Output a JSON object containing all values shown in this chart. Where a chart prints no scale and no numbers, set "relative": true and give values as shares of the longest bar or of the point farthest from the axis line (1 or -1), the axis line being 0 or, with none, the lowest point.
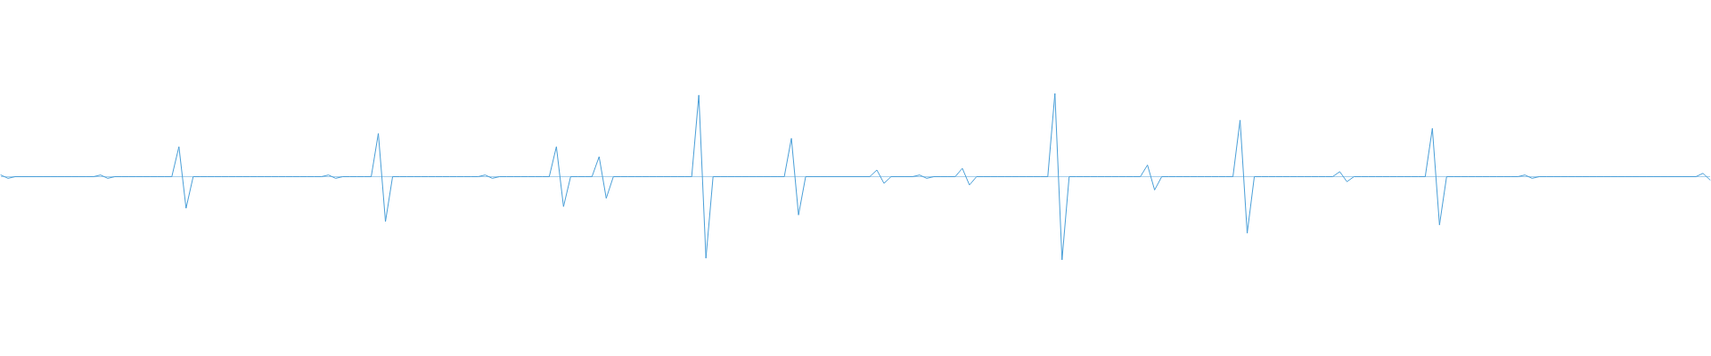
{
  "chart_data": {
    "type": "line",
    "relative": true,
    "color": "#4a9fd8",
    "ref_lines": [
      {
        "axis": "y",
        "value": 0,
        "color": "#4a9fd8"
      }
    ],
    "categories": [
      null,
      null,
      null,
      null,
      null,
      null,
      null,
      null,
      null,
      null,
      null,
      null,
      null,
      null,
      null,
      null,
      null,
      null,
      null,
      null,
      null,
      null,
      null,
      null,
      null,
      null,
      null,
      null,
      null,
      null,
      null,
      null,
      null,
      null,
      null,
      null,
      null,
      null,
      null,
      null,
      null,
      null,
      null,
      null,
      null,
      null,
      null,
      null,
      null,
      null,
      null,
      null,
      null,
      null,
      null,
      null,
      null,
      null,
      null,
      null,
      null,
      null,
      null,
      null,
      null,
      null,
      null,
      null,
      null,
      null,
      null,
      null,
      null,
      null,
      null,
      null,
      null,
      null,
      null,
      null,
      null,
      null,
      null,
      null,
      null,
      null,
      null,
      null,
      null,
      null,
      null,
      null,
      null,
      null,
      null,
      null,
      null,
      null,
      null,
      null,
      null,
      null,
      null,
      null,
      null,
      null,
      null,
      null,
      null,
      null,
      null,
      null,
      null,
      null,
      null,
      null,
      null,
      null,
      null,
      null,
      null,
      null,
      null,
      null,
      null,
      null,
      null,
      null,
      null,
      null,
      null,
      null,
      null,
      null,
      null,
      null,
      null,
      null,
      null,
      null,
      null,
      null,
      null,
      null,
      null,
      null,
      null,
      null,
      null,
      null,
      null,
      null,
      null,
      null,
      null,
      null,
      null,
      null,
      null,
      null,
      null,
      null,
      null,
      null,
      null,
      null,
      null,
      null,
      null,
      null,
      null,
      null,
      null,
      null,
      null,
      null,
      null,
      null,
      null,
      null,
      null,
      null,
      null,
      null,
      null,
      null,
      null,
      null,
      null,
      null,
      null,
      null,
      null,
      null,
      null,
      null,
      null,
      null,
      null,
      null,
      null,
      null,
      null,
      null,
      null,
      null,
      null,
      null,
      null,
      null,
      null,
      null,
      null,
      null,
      null,
      null,
      null,
      null,
      null,
      null,
      null,
      null,
      null,
      null,
      null,
      null,
      null,
      null,
      null,
      null,
      null,
      null,
      null,
      null,
      null,
      null,
      null,
      null,
      null,
      null,
      null
    ],
    "values": [
      0.02,
      -0.02,
      0,
      0,
      0,
      0,
      0,
      0,
      0,
      0,
      0,
      0,
      0,
      0,
      0.02,
      -0.02,
      0,
      0,
      0,
      0,
      0,
      0,
      0,
      0,
      0,
      0.36,
      -0.38,
      0,
      0,
      0,
      0,
      0,
      0,
      0,
      0,
      0,
      0,
      0,
      0,
      0,
      0,
      0,
      0,
      0,
      0,
      0,
      0.02,
      -0.02,
      0,
      0,
      0,
      0,
      0,
      0.52,
      -0.54,
      0,
      0,
      0,
      0,
      0,
      0,
      0,
      0,
      0,
      0,
      0,
      0,
      0,
      0.02,
      -0.02,
      0,
      0,
      0,
      0,
      0,
      0,
      0,
      0,
      0.36,
      -0.36,
      0,
      0,
      0,
      0,
      0.24,
      -0.26,
      0,
      0,
      0,
      0,
      0,
      0,
      0,
      0,
      0,
      0,
      0,
      0,
      0.98,
      -0.98,
      0,
      0,
      0,
      0,
      0,
      0,
      0,
      0,
      0,
      0,
      0,
      0.46,
      -0.46,
      0,
      0,
      0,
      0,
      0,
      0,
      0,
      0,
      0,
      0,
      0.08,
      -0.08,
      0,
      0,
      0,
      0,
      0.02,
      -0.02,
      0,
      0,
      0,
      0,
      0.1,
      -0.1,
      0,
      0,
      0,
      0,
      0,
      0,
      0,
      0,
      0,
      0,
      0,
      1,
      -1,
      0,
      0,
      0,
      0,
      0,
      0,
      0,
      0,
      0,
      0,
      0,
      0.14,
      -0.16,
      0,
      0,
      0,
      0,
      0,
      0,
      0,
      0,
      0,
      0,
      0,
      0.68,
      -0.68,
      0,
      0,
      0,
      0,
      0,
      0,
      0,
      0,
      0,
      0,
      0,
      0,
      0.06,
      -0.06,
      0,
      0,
      0,
      0,
      0,
      0,
      0,
      0,
      0,
      0,
      0,
      0.58,
      -0.58,
      0,
      0,
      0,
      0,
      0,
      0,
      0,
      0,
      0,
      0,
      0,
      0.02,
      -0.02,
      0,
      0,
      0,
      0,
      0,
      0,
      0,
      0,
      0,
      0,
      0,
      0,
      0,
      0,
      0,
      0,
      0,
      0,
      0,
      0,
      0,
      0,
      0,
      0.04,
      -0.04
    ]
  }
}
